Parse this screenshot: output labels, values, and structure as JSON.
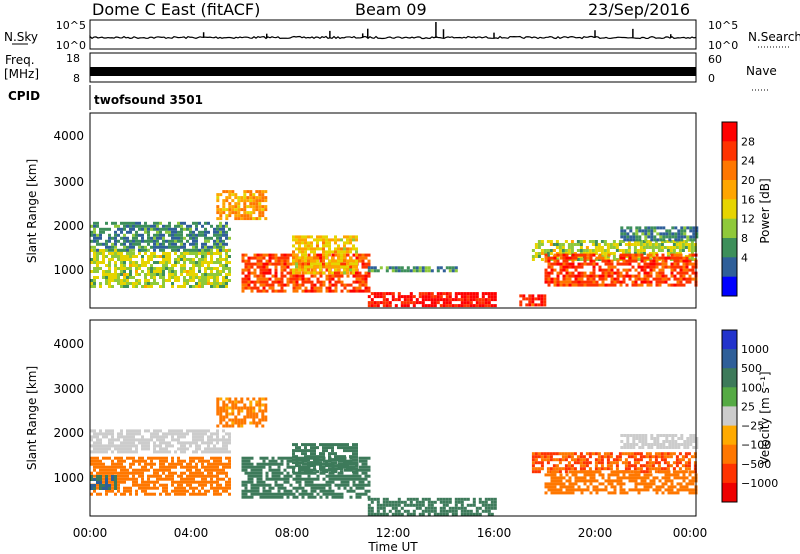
{
  "header": {
    "station": "Dome C East (fitACF)",
    "beam": "Beam 09",
    "date": "23/Sep/2016"
  },
  "strips": {
    "nsky_label": "N.Sky",
    "nsky_ticks": [
      "10^5",
      "10^0"
    ],
    "nsearch_label": "N.Search",
    "nsearch_ticks": [
      "10^5",
      "10^0"
    ],
    "freq_label_1": "Freq.",
    "freq_label_2": "[MHz]",
    "freq_ticks": [
      "18",
      "8"
    ],
    "nave_label": "Nave",
    "nave_ticks": [
      "60",
      "0"
    ],
    "cpid_label": "CPID",
    "cpid_text": "twofsound 3501"
  },
  "axes": {
    "y_label": "Slant Range [km]",
    "y_ticks": [
      "4000",
      "3000",
      "2000",
      "1000"
    ],
    "x_ticks": [
      "00:00",
      "04:00",
      "08:00",
      "12:00",
      "16:00",
      "20:00",
      "00:00"
    ],
    "x_label": "Time UT"
  },
  "colorbars": {
    "power": {
      "label": "Power [dB]",
      "ticks": [
        "28",
        "24",
        "20",
        "16",
        "12",
        "8",
        "4"
      ],
      "colors": [
        "#ff0000",
        "#ff3300",
        "#ff7700",
        "#ffa500",
        "#e6d400",
        "#8fc93a",
        "#3d8f5a",
        "#2f5f99",
        "#0000ff"
      ]
    },
    "velocity": {
      "label": "Velocity [m s⁻¹]",
      "ticks": [
        "1000",
        "500",
        "100",
        "25",
        "−25",
        "−100",
        "−500",
        "−1000"
      ],
      "colors": [
        "#2233cc",
        "#2f5f99",
        "#3d7a5a",
        "#55aa44",
        "#cccccc",
        "#ffaa00",
        "#ff7700",
        "#ff3300",
        "#ee0000"
      ]
    }
  },
  "chart_data": [
    {
      "type": "heatmap",
      "panel": "power",
      "x": "Time UT (hours)",
      "xlim": [
        0,
        24
      ],
      "ylim": [
        200,
        4500
      ],
      "regions": [
        {
          "t": [
            0,
            5.5
          ],
          "range": [
            700,
            1500
          ],
          "value_db": 14
        },
        {
          "t": [
            0,
            5.5
          ],
          "range": [
            1500,
            2100
          ],
          "value_db": 8
        },
        {
          "t": [
            5.0,
            7.0
          ],
          "range": [
            2200,
            2800
          ],
          "value_db": 20
        },
        {
          "t": [
            6.0,
            11.0
          ],
          "range": [
            600,
            1400
          ],
          "value_db": 26
        },
        {
          "t": [
            8.0,
            10.5
          ],
          "range": [
            1000,
            1800
          ],
          "value_db": 18
        },
        {
          "t": [
            11.0,
            14.5
          ],
          "range": [
            1050,
            1120
          ],
          "value_db": 8
        },
        {
          "t": [
            11.0,
            16.0
          ],
          "range": [
            250,
            550
          ],
          "value_db": 30
        },
        {
          "t": [
            17.0,
            18.0
          ],
          "range": [
            250,
            500
          ],
          "value_db": 28
        },
        {
          "t": [
            17.5,
            24.0
          ],
          "range": [
            1300,
            1700
          ],
          "value_db": 14
        },
        {
          "t": [
            18.0,
            24.0
          ],
          "range": [
            700,
            1400
          ],
          "value_db": 26
        },
        {
          "t": [
            21.0,
            24.0
          ],
          "range": [
            1700,
            2000
          ],
          "value_db": 8
        }
      ]
    },
    {
      "type": "heatmap",
      "panel": "velocity",
      "x": "Time UT (hours)",
      "xlim": [
        0,
        24
      ],
      "ylim": [
        200,
        4500
      ],
      "regions": [
        {
          "t": [
            0,
            5.5
          ],
          "range": [
            700,
            1500
          ],
          "value_ms": -150
        },
        {
          "t": [
            0,
            1.0
          ],
          "range": [
            800,
            1100
          ],
          "value_ms": 300
        },
        {
          "t": [
            0,
            5.5
          ],
          "range": [
            1600,
            2100
          ],
          "value_ms": 0
        },
        {
          "t": [
            5.0,
            7.0
          ],
          "range": [
            2200,
            2800
          ],
          "value_ms": -80
        },
        {
          "t": [
            6.0,
            11.0
          ],
          "range": [
            600,
            1500
          ],
          "value_ms": 200
        },
        {
          "t": [
            8.0,
            10.5
          ],
          "range": [
            1200,
            1800
          ],
          "value_ms": 100
        },
        {
          "t": [
            11.0,
            16.0
          ],
          "range": [
            250,
            600
          ],
          "value_ms": 120
        },
        {
          "t": [
            17.5,
            24.0
          ],
          "range": [
            1200,
            1600
          ],
          "value_ms": -300
        },
        {
          "t": [
            18.0,
            24.0
          ],
          "range": [
            700,
            1200
          ],
          "value_ms": -150
        },
        {
          "t": [
            21.0,
            24.0
          ],
          "range": [
            1700,
            2000
          ],
          "value_ms": 0
        }
      ]
    }
  ]
}
